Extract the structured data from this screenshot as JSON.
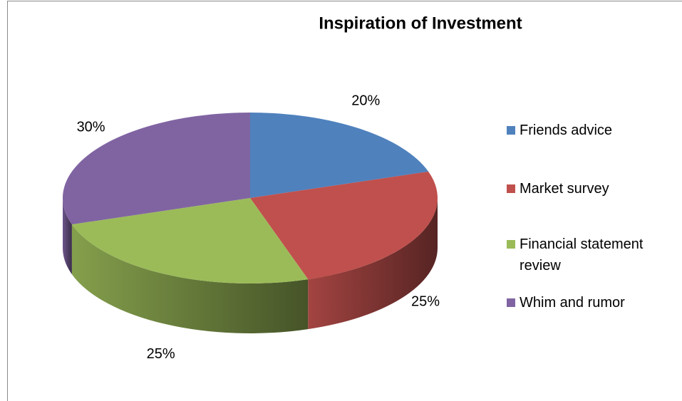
{
  "chart_data": {
    "type": "pie",
    "title": "Inspiration of Investment",
    "categories": [
      "Friends advice",
      "Market survey",
      "Financial statement review",
      "Whim and rumor"
    ],
    "values": [
      20,
      25,
      25,
      30
    ],
    "value_labels": [
      "20%",
      "25%",
      "25%",
      "30%"
    ],
    "colors": [
      "#4f81bd",
      "#c0504d",
      "#9bbb59",
      "#8064a2"
    ],
    "legend": "right"
  }
}
